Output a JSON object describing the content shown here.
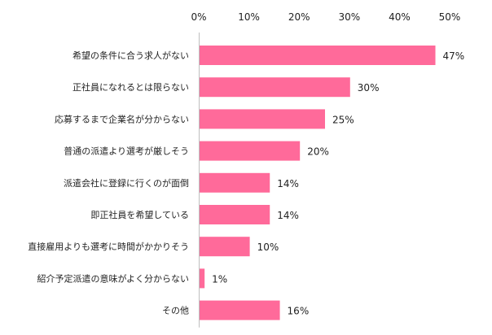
{
  "chart_data": {
    "type": "bar",
    "orientation": "horizontal",
    "categories": [
      "希望の条件に合う求人がない",
      "正社員になれるとは限らない",
      "応募するまで企業名が分からない",
      "普通の派遣より選考が厳しそう",
      "派遣会社に登録に行くのが面倒",
      "即正社員を希望している",
      "直接雇用よりも選考に時間がかかりそう",
      "紹介予定派遣の意味がよく分からない",
      "その他"
    ],
    "values": [
      47,
      30,
      25,
      20,
      14,
      14,
      10,
      1,
      16
    ],
    "value_labels": [
      "47%",
      "30%",
      "25%",
      "20%",
      "14%",
      "14%",
      "10%",
      "1%",
      "16%"
    ],
    "x_ticks": [
      0,
      10,
      20,
      30,
      40,
      50
    ],
    "x_tick_labels": [
      "0%",
      "10%",
      "20%",
      "30%",
      "40%",
      "50%"
    ],
    "xlim": [
      0,
      50
    ],
    "axis_position": "top",
    "grid": false,
    "bar_color": "#ff6a9a"
  }
}
